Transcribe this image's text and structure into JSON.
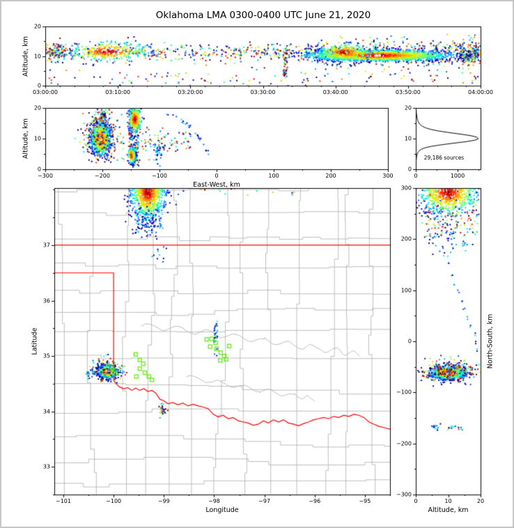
{
  "title": "Oklahoma LMA 0300-0400 UTC June 21, 2020",
  "colors": {
    "background": "#ffffff",
    "frame": "#c6c6c6",
    "axis": "#000000",
    "county_line": "#b4b4b4",
    "state_line": "#ff0000",
    "gray_river": "#b4b4b4",
    "green_square": "#55ee00",
    "hist_line": "#000000",
    "colormap": [
      "#000080",
      "#0000f0",
      "#0060ff",
      "#00b0ff",
      "#00f0e0",
      "#40ff90",
      "#90ff50",
      "#d8f000",
      "#ffc000",
      "#ff8000",
      "#ff3000",
      "#d00000",
      "#800000"
    ]
  },
  "chart_data": [
    {
      "id": "time_height",
      "type": "scatter",
      "xlabel": "",
      "ylabel": "Altitude, km",
      "x_range": [
        0,
        3600
      ],
      "y_range": [
        0,
        20
      ],
      "x_ticks": [
        {
          "v": 0,
          "label": "03:00:00"
        },
        {
          "v": 600,
          "label": "03:10:00"
        },
        {
          "v": 1200,
          "label": "03:20:00"
        },
        {
          "v": 1800,
          "label": "03:30:00"
        },
        {
          "v": 2400,
          "label": "03:40:00"
        },
        {
          "v": 3000,
          "label": "03:50:00"
        },
        {
          "v": 3600,
          "label": "04:00:00"
        }
      ],
      "x_minor_step": 120,
      "y_ticks": [
        {
          "v": 0,
          "label": "0"
        },
        {
          "v": 10,
          "label": "10"
        },
        {
          "v": 20,
          "label": "20"
        }
      ],
      "y_minor": [
        5,
        15
      ],
      "clusters": [
        {
          "shape": "band",
          "x0": 0,
          "x1": 2300,
          "ymean": 11.4,
          "ysd": 1.5,
          "n": 420,
          "paint": "mixed"
        },
        {
          "shape": "gauss",
          "cx": 520,
          "cy": 11.6,
          "sx": 170,
          "sy": 1.7,
          "n": 300,
          "paint": "core"
        },
        {
          "shape": "gauss",
          "cx": 90,
          "cy": 11.3,
          "sx": 60,
          "sy": 1.4,
          "n": 110,
          "paint": "mixed"
        },
        {
          "shape": "band",
          "x0": 2250,
          "x1": 3600,
          "ymean": 11.0,
          "ysd": 2.3,
          "n": 520,
          "paint": "mixed"
        },
        {
          "shape": "gauss",
          "cx": 2750,
          "cy": 10.2,
          "sx": 300,
          "sy": 0.95,
          "n": 1600,
          "paint": "core",
          "white_core": true
        },
        {
          "shape": "gauss",
          "cx": 2470,
          "cy": 11.2,
          "sx": 110,
          "sy": 1.5,
          "n": 240,
          "paint": "core"
        },
        {
          "shape": "band",
          "x0": 0,
          "x1": 3600,
          "ymean": 2.2,
          "ysd": 1.6,
          "n": 120,
          "paint": "mixed"
        },
        {
          "shape": "vline",
          "x": 1985,
          "jx": 18,
          "y0": 2.0,
          "y1": 14.5,
          "n": 60,
          "paint": "mixed"
        },
        {
          "shape": "band",
          "x0": 3430,
          "x1": 3600,
          "ymean": 10.5,
          "ysd": 2.0,
          "n": 150,
          "paint": "mixed"
        }
      ]
    },
    {
      "id": "east_west",
      "type": "scatter",
      "xlabel": "East-West, km",
      "ylabel": "Altitude, km",
      "x_range": [
        -300,
        300
      ],
      "y_range": [
        0,
        20
      ],
      "x_ticks": [
        {
          "v": -300,
          "label": "−300"
        },
        {
          "v": -200,
          "label": "−200"
        },
        {
          "v": -100,
          "label": "−100"
        },
        {
          "v": 0,
          "label": "0"
        },
        {
          "v": 100,
          "label": "100"
        },
        {
          "v": 200,
          "label": "200"
        },
        {
          "v": 300,
          "label": "300"
        }
      ],
      "x_minor_step": 50,
      "y_ticks": [
        {
          "v": 0,
          "label": "0"
        },
        {
          "v": 10,
          "label": "10"
        },
        {
          "v": 20,
          "label": "20"
        }
      ],
      "y_minor": [
        5,
        15
      ],
      "clusters": [
        {
          "shape": "gauss",
          "cx": -203,
          "cy": 9.8,
          "sx": 8,
          "sy": 2.5,
          "n": 1100,
          "paint": "core",
          "white_core": true
        },
        {
          "shape": "gauss",
          "cx": -200,
          "cy": 11.0,
          "sx": 18,
          "sy": 3.8,
          "n": 260,
          "paint": "mixed"
        },
        {
          "shape": "gauss",
          "cx": -202,
          "cy": 16.5,
          "sx": 6,
          "sy": 1.8,
          "n": 110,
          "paint": "mixed"
        },
        {
          "shape": "vline",
          "x": -145,
          "jx": 9,
          "y0": 1.0,
          "y1": 19.5,
          "n": 220,
          "paint": "mixed"
        },
        {
          "shape": "gauss",
          "cx": -143,
          "cy": 16.3,
          "sx": 6,
          "sy": 2.2,
          "n": 250,
          "paint": "core"
        },
        {
          "shape": "gauss",
          "cx": -149,
          "cy": 4.5,
          "sx": 3.5,
          "sy": 1.3,
          "n": 120,
          "paint": "core"
        },
        {
          "shape": "gauss",
          "cx": -104,
          "cy": 5.5,
          "sx": 4,
          "sy": 2.0,
          "n": 40,
          "paint": "cool"
        },
        {
          "shape": "band",
          "x0": -135,
          "x1": -45,
          "ymean": 9.0,
          "ysd": 2.6,
          "n": 80,
          "paint": "mixed"
        },
        {
          "shape": "arc",
          "cx": -120,
          "cy": 0,
          "rx": 108,
          "ry": 19,
          "a0": 15,
          "a1": 80,
          "n": 26,
          "jx": 5,
          "jy": 0.8,
          "paint": "cool"
        }
      ]
    },
    {
      "id": "alt_histogram",
      "type": "line",
      "xlabel": "",
      "ylabel": "",
      "annotation": "29,186 sources",
      "x_range": [
        0,
        1550
      ],
      "y_range": [
        0,
        20
      ],
      "x_ticks": [
        {
          "v": 0,
          "label": "0"
        },
        {
          "v": 1000,
          "label": "1000"
        }
      ],
      "x_minor": [
        500,
        1500
      ],
      "y_ticks": [
        {
          "v": 0,
          "label": "0"
        },
        {
          "v": 10,
          "label": "10"
        },
        {
          "v": 20,
          "label": "20"
        }
      ],
      "y_minor": [
        5,
        15
      ],
      "alt_step_km": 0.5,
      "counts": [
        2,
        3,
        4,
        5,
        6,
        8,
        10,
        14,
        18,
        25,
        35,
        50,
        80,
        130,
        220,
        380,
        620,
        900,
        1200,
        1420,
        1500,
        1460,
        1300,
        1050,
        780,
        540,
        360,
        240,
        160,
        110,
        80,
        60,
        45,
        35,
        28,
        22,
        18,
        14,
        11,
        9,
        7
      ]
    },
    {
      "id": "plan_view",
      "type": "map-scatter",
      "xlabel": "Longitude",
      "ylabel": "Latitude",
      "x_range": [
        -101.18,
        -94.5
      ],
      "y_range": [
        32.5,
        38.03
      ],
      "x_ticks": [
        {
          "v": -101,
          "label": "−101"
        },
        {
          "v": -100,
          "label": "−100"
        },
        {
          "v": -99,
          "label": "−99"
        },
        {
          "v": -98,
          "label": "−98"
        },
        {
          "v": -97,
          "label": "−97"
        },
        {
          "v": -96,
          "label": "−96"
        },
        {
          "v": -95,
          "label": "−95"
        }
      ],
      "x_minor_step": 0.5,
      "y_ticks": [
        {
          "v": 33,
          "label": "33"
        },
        {
          "v": 34,
          "label": "34"
        },
        {
          "v": 35,
          "label": "35"
        },
        {
          "v": 36,
          "label": "36"
        },
        {
          "v": 37,
          "label": "37"
        }
      ],
      "y_minor_step": 0.5,
      "state_lines": [
        [
          [
            -101.18,
            37.0
          ],
          [
            -94.5,
            37.0
          ]
        ],
        [
          [
            -101.18,
            36.5
          ],
          [
            -100.0,
            36.5
          ],
          [
            -100.0,
            34.56
          ]
        ],
        [
          [
            -100.0,
            34.56
          ],
          [
            -99.95,
            34.5
          ],
          [
            -99.88,
            34.44
          ],
          [
            -99.8,
            34.41
          ],
          [
            -99.72,
            34.43
          ],
          [
            -99.64,
            34.38
          ],
          [
            -99.56,
            34.42
          ],
          [
            -99.48,
            34.38
          ],
          [
            -99.4,
            34.41
          ],
          [
            -99.32,
            34.36
          ],
          [
            -99.24,
            34.38
          ],
          [
            -99.16,
            34.33
          ],
          [
            -99.08,
            34.22
          ],
          [
            -99.0,
            34.19
          ],
          [
            -98.92,
            34.14
          ],
          [
            -98.82,
            34.16
          ],
          [
            -98.72,
            34.12
          ],
          [
            -98.62,
            34.15
          ],
          [
            -98.52,
            34.1
          ],
          [
            -98.42,
            34.13
          ],
          [
            -98.32,
            34.1
          ],
          [
            -98.22,
            34.08
          ],
          [
            -98.12,
            34.05
          ],
          [
            -98.02,
            33.95
          ],
          [
            -97.92,
            33.9
          ],
          [
            -97.82,
            33.93
          ],
          [
            -97.72,
            33.87
          ],
          [
            -97.62,
            33.89
          ],
          [
            -97.52,
            33.83
          ],
          [
            -97.42,
            33.81
          ],
          [
            -97.32,
            33.79
          ],
          [
            -97.22,
            33.75
          ],
          [
            -97.12,
            33.77
          ],
          [
            -97.02,
            33.83
          ],
          [
            -96.92,
            33.79
          ],
          [
            -96.82,
            33.85
          ],
          [
            -96.72,
            33.81
          ],
          [
            -96.62,
            33.85
          ],
          [
            -96.52,
            33.79
          ],
          [
            -96.42,
            33.77
          ],
          [
            -96.32,
            33.74
          ],
          [
            -96.22,
            33.78
          ],
          [
            -96.12,
            33.81
          ],
          [
            -96.02,
            33.85
          ],
          [
            -95.92,
            33.87
          ],
          [
            -95.82,
            33.89
          ],
          [
            -95.72,
            33.87
          ],
          [
            -95.62,
            33.91
          ],
          [
            -95.52,
            33.89
          ],
          [
            -95.42,
            33.93
          ],
          [
            -95.32,
            33.91
          ],
          [
            -95.22,
            33.95
          ],
          [
            -95.12,
            33.93
          ],
          [
            -95.02,
            33.89
          ],
          [
            -94.92,
            33.81
          ],
          [
            -94.82,
            33.77
          ],
          [
            -94.72,
            33.73
          ],
          [
            -94.62,
            33.71
          ],
          [
            -94.5,
            33.68
          ]
        ]
      ],
      "gray_rivers": [
        {
          "pts": [
            [
              -99.45,
              35.55
            ],
            [
              -98.6,
              35.47
            ],
            [
              -97.8,
              35.38
            ],
            [
              -97.0,
              35.27
            ],
            [
              -96.3,
              35.18
            ],
            [
              -95.6,
              35.1
            ],
            [
              -95.1,
              35.02
            ]
          ],
          "amp": 0.05
        },
        {
          "pts": [
            [
              -98.55,
              34.62
            ],
            [
              -97.8,
              34.5
            ],
            [
              -97.1,
              34.38
            ],
            [
              -96.4,
              34.28
            ],
            [
              -96.0,
              34.22
            ]
          ],
          "amp": 0.04
        }
      ],
      "green_squares": [
        [
          -100.02,
          34.75
        ],
        [
          -99.96,
          34.68
        ],
        [
          -99.56,
          35.03
        ],
        [
          -99.48,
          34.93
        ],
        [
          -99.41,
          34.86
        ],
        [
          -99.48,
          34.77
        ],
        [
          -99.38,
          34.7
        ],
        [
          -99.3,
          34.63
        ],
        [
          -99.24,
          34.57
        ],
        [
          -99.55,
          34.63
        ],
        [
          -98.15,
          35.3
        ],
        [
          -98.05,
          35.31
        ],
        [
          -97.97,
          35.24
        ],
        [
          -98.08,
          35.17
        ],
        [
          -97.95,
          35.13
        ],
        [
          -97.87,
          35.06
        ],
        [
          -97.8,
          35.0
        ],
        [
          -97.76,
          34.94
        ],
        [
          -97.88,
          34.92
        ],
        [
          -97.7,
          35.18
        ]
      ],
      "clusters": [
        {
          "shape": "gauss",
          "cx": -100.13,
          "cy": 34.72,
          "sx": 0.085,
          "sy": 0.055,
          "n": 950,
          "paint": "core",
          "white_core": true
        },
        {
          "shape": "gauss",
          "cx": -100.1,
          "cy": 34.73,
          "sx": 0.16,
          "sy": 0.1,
          "n": 170,
          "paint": "mixed"
        },
        {
          "shape": "band",
          "x0": -100.55,
          "x1": -100.32,
          "ymean": 34.69,
          "ysd": 0.025,
          "n": 22,
          "paint": "cool"
        },
        {
          "shape": "gauss",
          "cx": -99.32,
          "cy": 37.95,
          "sx": 0.17,
          "sy": 0.24,
          "n": 900,
          "paint": "core"
        },
        {
          "shape": "band",
          "x0": -99.62,
          "x1": -99.02,
          "ymean": 37.45,
          "ysd": 0.16,
          "n": 110,
          "paint": "cool"
        },
        {
          "shape": "band",
          "x0": -99.25,
          "x1": -98.95,
          "ymean": 36.85,
          "ysd": 0.1,
          "n": 10,
          "paint": "cool"
        },
        {
          "shape": "band",
          "x0": -98.9,
          "x1": -95.7,
          "ymean": 37.99,
          "ysd": 0.05,
          "n": 26,
          "paint": "mixed"
        },
        {
          "shape": "vline",
          "x": -97.97,
          "jx": 0.035,
          "y0": 34.95,
          "y1": 35.65,
          "n": 26,
          "paint": "cool"
        },
        {
          "shape": "gauss",
          "cx": -99.02,
          "cy": 34.03,
          "sx": 0.035,
          "sy": 0.05,
          "n": 30,
          "paint": "mixed"
        }
      ]
    },
    {
      "id": "north_south",
      "type": "scatter",
      "xlabel": "Altitude, km",
      "ylabel": "North-South, km",
      "x_range": [
        0,
        20
      ],
      "y_range": [
        -300,
        300
      ],
      "x_ticks": [
        {
          "v": 0,
          "label": "0"
        },
        {
          "v": 10,
          "label": "10"
        },
        {
          "v": 20,
          "label": "20"
        }
      ],
      "x_minor": [
        5,
        15
      ],
      "y_ticks": [
        {
          "v": -300,
          "label": "−300"
        },
        {
          "v": -200,
          "label": "−200"
        },
        {
          "v": -100,
          "label": "−100"
        },
        {
          "v": 0,
          "label": "0"
        },
        {
          "v": 100,
          "label": "100"
        },
        {
          "v": 200,
          "label": "200"
        },
        {
          "v": 300,
          "label": "300"
        }
      ],
      "y_minor_step": 50,
      "clusters": [
        {
          "shape": "gauss",
          "cx": 10,
          "cy": -62,
          "sx": 2.5,
          "sy": 6,
          "n": 1100,
          "paint": "core",
          "white_core": true
        },
        {
          "shape": "gauss",
          "cx": 10.5,
          "cy": -60,
          "sx": 4.2,
          "sy": 11,
          "n": 260,
          "paint": "mixed"
        },
        {
          "shape": "gauss",
          "cx": 10,
          "cy": 292,
          "sx": 4.5,
          "sy": 22,
          "n": 850,
          "paint": "core"
        },
        {
          "shape": "band",
          "x0": 2,
          "x1": 19,
          "ymean": 245,
          "ysd": 26,
          "n": 150,
          "paint": "mixed"
        },
        {
          "shape": "band",
          "x0": 4,
          "x1": 16,
          "ymean": 196,
          "ysd": 16,
          "n": 40,
          "paint": "cool"
        },
        {
          "shape": "points",
          "pts": [
            [
              9,
              170
            ],
            [
              10,
              150
            ],
            [
              11,
              132
            ],
            [
              12,
              114
            ],
            [
              13,
              97
            ],
            [
              14,
              80
            ],
            [
              15,
              63
            ],
            [
              16,
              46
            ],
            [
              17,
              30
            ],
            [
              18,
              14
            ],
            [
              18.6,
              -2
            ],
            [
              19.2,
              -18
            ]
          ],
          "n": 24,
          "jx": 0.8,
          "jy": 7,
          "paint": "cool"
        },
        {
          "shape": "gauss",
          "cx": 6,
          "cy": -168,
          "sx": 1.6,
          "sy": 3,
          "n": 14,
          "paint": "cool"
        },
        {
          "shape": "gauss",
          "cx": 11.5,
          "cy": -171,
          "sx": 1.6,
          "sy": 3,
          "n": 14,
          "paint": "mixed"
        }
      ]
    }
  ]
}
